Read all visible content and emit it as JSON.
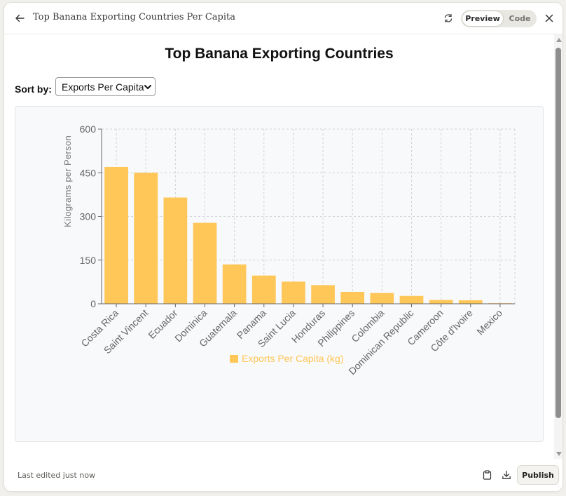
{
  "header": {
    "title": "Top Banana Exporting Countries Per Capita",
    "toggle": {
      "preview_label": "Preview",
      "code_label": "Code",
      "active": "Preview"
    },
    "icons": [
      "back-arrow-icon",
      "refresh-icon",
      "close-icon"
    ]
  },
  "page": {
    "title": "Top Banana Exporting Countries",
    "sort_label": "Sort by:",
    "sort_value": "Exports Per Capita"
  },
  "chart_data": {
    "type": "bar",
    "ylabel": "Kilograms per Person",
    "xlabel": "",
    "ylim": [
      0,
      600
    ],
    "yticks": [
      0,
      150,
      300,
      450,
      600
    ],
    "grid": true,
    "legend_position": "bottom",
    "categories": [
      "Costa Rica",
      "Saint Vincent",
      "Ecuador",
      "Dominica",
      "Guatemala",
      "Panama",
      "Saint Lucia",
      "Honduras",
      "Philippines",
      "Colombia",
      "Dominican Republic",
      "Cameroon",
      "Côte d'Ivoire",
      "Mexico"
    ],
    "series": [
      {
        "name": "Exports Per Capita (kg)",
        "color": "#ffc658",
        "values": [
          470,
          450,
          365,
          278,
          135,
          97,
          76,
          64,
          41,
          37,
          27,
          13,
          12,
          2
        ]
      }
    ]
  },
  "footer": {
    "status": "Last edited just now",
    "publish_label": "Publish",
    "icons": [
      "clipboard-icon",
      "download-icon"
    ]
  }
}
